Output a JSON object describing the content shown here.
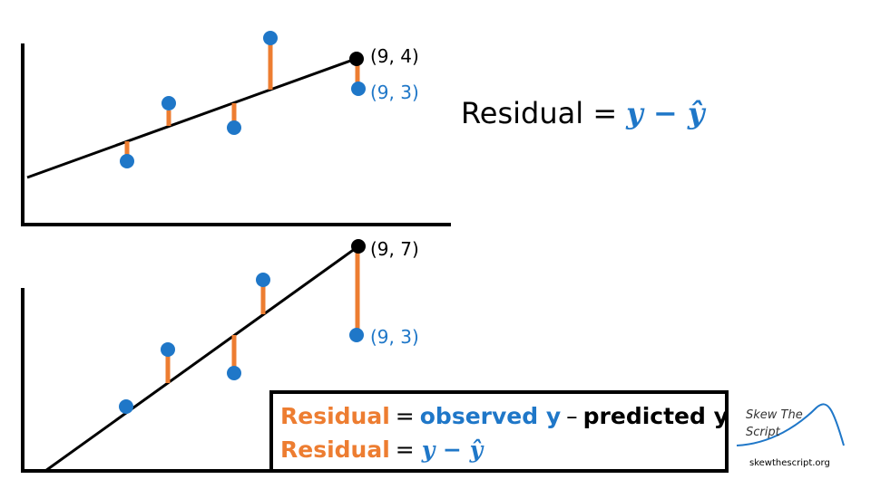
{
  "top_panel": {
    "observed_label": "(9, 3)",
    "predicted_label": "(9, 4)"
  },
  "formula": {
    "lhs": "Residual =",
    "rhs": "y − ŷ"
  },
  "bottom_panel": {
    "observed_label": "(9, 3)",
    "predicted_label": "(9, 7)"
  },
  "box": {
    "line1": {
      "residual": "Residual",
      "equals": "=",
      "observed": "observed y",
      "minus": "–",
      "predicted": "predicted y"
    },
    "line2": {
      "residual": "Residual",
      "equals": "=",
      "expression": "y − ŷ"
    }
  },
  "logo": {
    "name_line1": "Skew The",
    "name_line2": "Script",
    "url": "skewthescript.org"
  }
}
